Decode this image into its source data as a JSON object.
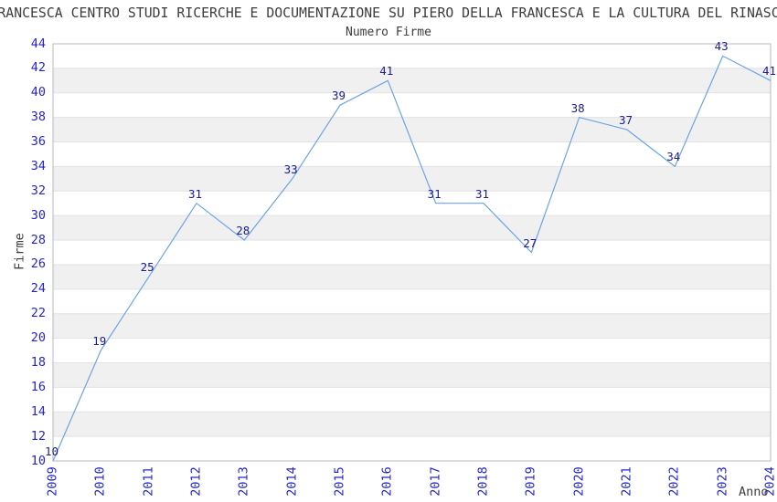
{
  "header": {
    "title": "RANCESCA CENTRO STUDI RICERCHE E DOCUMENTAZIONE SU PIERO DELLA FRANCESCA E LA CULTURA DEL RINASC",
    "subtitle": "Numero Firme"
  },
  "chart_data": {
    "type": "line",
    "title": "Numero Firme",
    "xlabel": "Anno",
    "ylabel": "Firme",
    "categories": [
      "2009",
      "2010",
      "2011",
      "2012",
      "2013",
      "2014",
      "2015",
      "2016",
      "2017",
      "2018",
      "2019",
      "2020",
      "2021",
      "2022",
      "2023",
      "2024"
    ],
    "values": [
      10,
      19,
      25,
      31,
      28,
      33,
      39,
      41,
      31,
      31,
      27,
      38,
      37,
      34,
      43,
      41
    ],
    "ylim": [
      10,
      44
    ],
    "yticks": [
      10,
      12,
      14,
      16,
      18,
      20,
      22,
      24,
      26,
      28,
      30,
      32,
      34,
      36,
      38,
      40,
      42,
      44
    ],
    "grid": "horizontal",
    "band_shading": true,
    "legend": "none",
    "colors": {
      "line": "#6ca4e4",
      "tick_label": "#2424cc",
      "data_label": "#1c1c8f",
      "band": "#f0f0f0",
      "grid": "#e2e2e2",
      "spine": "#b5bac2",
      "text": "#3d3d3d"
    }
  }
}
